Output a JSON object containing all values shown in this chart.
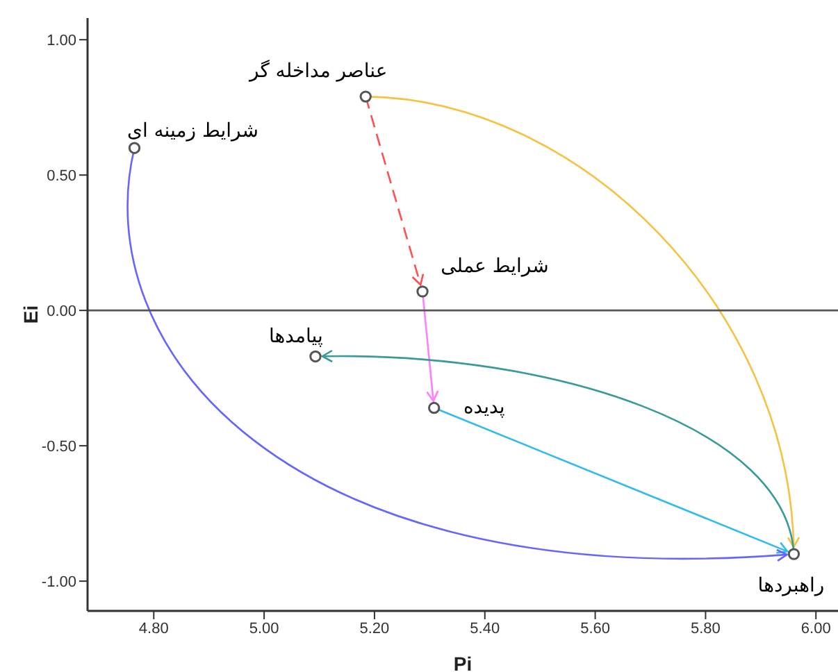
{
  "chart_data": {
    "type": "scatter",
    "xlabel": "Pi",
    "ylabel": "Ei",
    "series": [
      {
        "color": "#555555",
        "x": [
          5.184,
          4.765,
          5.287,
          5.093,
          5.308,
          5.96
        ],
        "values": [
          0.79,
          0.6,
          0.07,
          -0.17,
          -0.36,
          -0.9
        ]
      }
    ],
    "marker": "circle",
    "annotations": [
      {
        "text": "عناصر مداخله گر",
        "x": 5.184,
        "y": 0.79
      },
      {
        "text": "شرایط زمینه ای",
        "x": 4.765,
        "y": 0.6
      },
      {
        "text": "شرایط عملی",
        "x": 5.287,
        "y": 0.07
      },
      {
        "text": "پیامدها",
        "x": 5.093,
        "y": -0.17
      },
      {
        "text": "پدیده",
        "x": 5.308,
        "y": -0.36
      },
      {
        "text": "راهبردها",
        "x": 5.96,
        "y": -0.9
      }
    ],
    "xlim": [
      4.68,
      6.04
    ],
    "xticks": [
      {
        "value": 4.8,
        "label": "4.80"
      },
      {
        "value": 5.0,
        "label": "5.00"
      },
      {
        "value": 5.2,
        "label": "5.20"
      },
      {
        "value": 5.4,
        "label": "5.40"
      },
      {
        "value": 5.6,
        "label": "5.60"
      },
      {
        "value": 5.8,
        "label": "5.80"
      },
      {
        "value": 6.0,
        "label": "6.00"
      }
    ],
    "ylim": [
      -1.11,
      1.08
    ],
    "yticks": [
      {
        "value": -1.0,
        "label": "-1.00"
      },
      {
        "value": -0.5,
        "label": "-0.50"
      },
      {
        "value": 0.0,
        "label": "0.00"
      },
      {
        "value": 0.5,
        "label": "0.50"
      },
      {
        "value": 1.0,
        "label": "1.00"
      }
    ],
    "ref_lines": [
      {
        "axis": "y",
        "value": 0,
        "color": "#555555"
      }
    ],
    "grid": false,
    "legend": false
  }
}
